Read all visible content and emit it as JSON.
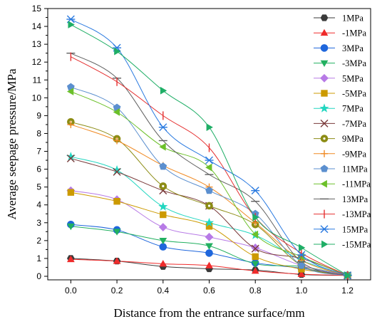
{
  "chart_data": {
    "type": "line",
    "xlabel": "Distance from the entrance surface/mm",
    "ylabel": "Average seepage pressure/MPa",
    "xlim": [
      -0.1,
      1.3
    ],
    "ylim": [
      -0.2,
      15
    ],
    "x_ticks": [
      0.0,
      0.2,
      0.4,
      0.6,
      0.8,
      1.0,
      1.2
    ],
    "x_tick_labels": [
      "0.0",
      "0.2",
      "0.4",
      "0.6",
      "0.8",
      "1.0",
      "1.2"
    ],
    "y_ticks": [
      0,
      1,
      2,
      3,
      4,
      5,
      6,
      7,
      8,
      9,
      10,
      11,
      12,
      13,
      14,
      15
    ],
    "y_tick_labels": [
      "0",
      "1",
      "2",
      "3",
      "4",
      "5",
      "6",
      "7",
      "8",
      "9",
      "10",
      "11",
      "12",
      "13",
      "14",
      "15"
    ],
    "grid": false,
    "legend_position": "right",
    "x": [
      0.0,
      0.2,
      0.4,
      0.6,
      0.8,
      1.0,
      1.2
    ],
    "series": [
      {
        "name": "1MPa",
        "color": "#3a3a3a",
        "marker": "hexagon",
        "values": [
          1.0,
          0.85,
          0.55,
          0.42,
          0.35,
          0.1,
          0.05
        ]
      },
      {
        "name": "-1MPa",
        "color": "#ef2b2b",
        "marker": "triangle-up",
        "values": [
          0.95,
          0.85,
          0.7,
          0.6,
          0.3,
          0.12,
          0.05
        ]
      },
      {
        "name": "3MPa",
        "color": "#1e66dc",
        "marker": "circle",
        "values": [
          2.9,
          2.6,
          1.65,
          1.3,
          0.75,
          0.45,
          0.05
        ]
      },
      {
        "name": "-3MPa",
        "color": "#22b060",
        "marker": "triangle-down",
        "values": [
          2.8,
          2.5,
          2.0,
          1.7,
          0.7,
          0.55,
          0.05
        ]
      },
      {
        "name": "5MPa",
        "color": "#b77ae6",
        "marker": "diamond",
        "values": [
          4.8,
          4.3,
          2.75,
          2.2,
          1.6,
          0.6,
          0.05
        ]
      },
      {
        "name": "-5MPa",
        "color": "#cc9a00",
        "marker": "square",
        "values": [
          4.7,
          4.2,
          3.45,
          2.8,
          1.1,
          0.4,
          0.05
        ]
      },
      {
        "name": "7MPa",
        "color": "#22d6c0",
        "marker": "star",
        "values": [
          6.7,
          5.95,
          3.9,
          3.0,
          2.3,
          0.9,
          0.05
        ]
      },
      {
        "name": "-7MPa",
        "color": "#7a3a3a",
        "marker": "x",
        "values": [
          6.6,
          5.85,
          4.8,
          3.95,
          1.55,
          1.0,
          0.05
        ]
      },
      {
        "name": "9MPa",
        "color": "#8c8c14",
        "marker": "circle-dot",
        "values": [
          8.65,
          7.7,
          5.05,
          3.95,
          2.9,
          0.6,
          0.05
        ]
      },
      {
        "name": "-9MPa",
        "color": "#f08a24",
        "marker": "plus",
        "values": [
          8.5,
          7.6,
          6.2,
          5.0,
          3.0,
          0.9,
          0.05
        ]
      },
      {
        "name": "11MPa",
        "color": "#5b8fcf",
        "marker": "pentagon",
        "values": [
          10.6,
          9.45,
          6.15,
          4.8,
          3.5,
          0.6,
          0.05
        ]
      },
      {
        "name": "-11MPa",
        "color": "#6cc02a",
        "marker": "triangle-left",
        "values": [
          10.35,
          9.2,
          7.25,
          6.1,
          2.35,
          1.1,
          0.05
        ]
      },
      {
        "name": "13MPa",
        "color": "#606060",
        "marker": "hline",
        "values": [
          12.5,
          11.1,
          7.6,
          5.7,
          4.2,
          0.8,
          0.05
        ]
      },
      {
        "name": "-13MPa",
        "color": "#e53030",
        "marker": "vline",
        "values": [
          12.3,
          10.9,
          9.0,
          7.2,
          3.3,
          1.3,
          0.05
        ]
      },
      {
        "name": "15MPa",
        "color": "#2a7ae0",
        "marker": "asterisk",
        "values": [
          14.4,
          12.8,
          8.35,
          6.5,
          4.8,
          1.2,
          0.05
        ]
      },
      {
        "name": "-15MPa",
        "color": "#1fae66",
        "marker": "triangle-right",
        "values": [
          14.1,
          12.6,
          10.4,
          8.35,
          3.3,
          1.6,
          0.05
        ]
      }
    ]
  }
}
